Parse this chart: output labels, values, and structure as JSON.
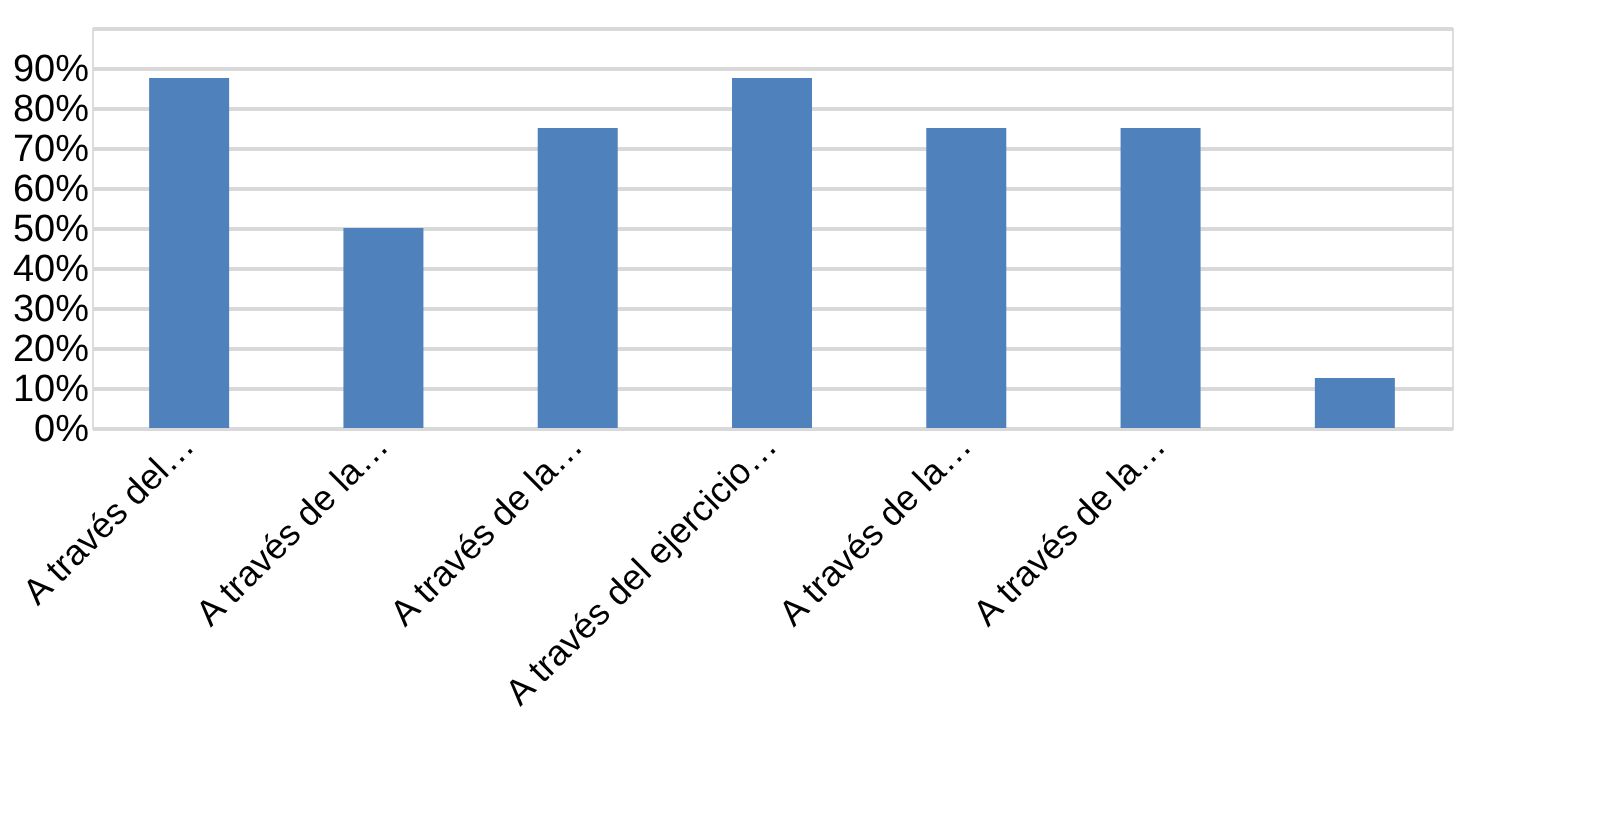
{
  "chart_data": {
    "type": "bar",
    "categories": [
      "A través del…",
      "A través de la…",
      "A través de la…",
      "A través del ejercicio…",
      "A través de la…",
      "A través de la…",
      null
    ],
    "values": [
      87.5,
      50,
      75,
      87.5,
      75,
      75,
      12.5
    ],
    "color": "#4f81bd",
    "ylim": [
      0,
      100
    ],
    "yticks": [
      {
        "value": 0,
        "label": "0%"
      },
      {
        "value": 10,
        "label": "10%"
      },
      {
        "value": 20,
        "label": "20%"
      },
      {
        "value": 30,
        "label": "30%"
      },
      {
        "value": 40,
        "label": "40%"
      },
      {
        "value": 50,
        "label": "50%"
      },
      {
        "value": 60,
        "label": "60%"
      },
      {
        "value": 70,
        "label": "70%"
      },
      {
        "value": 80,
        "label": "80%"
      },
      {
        "value": 90,
        "label": "90%"
      },
      {
        "value": 100,
        "label": null
      }
    ],
    "grid": "y"
  }
}
